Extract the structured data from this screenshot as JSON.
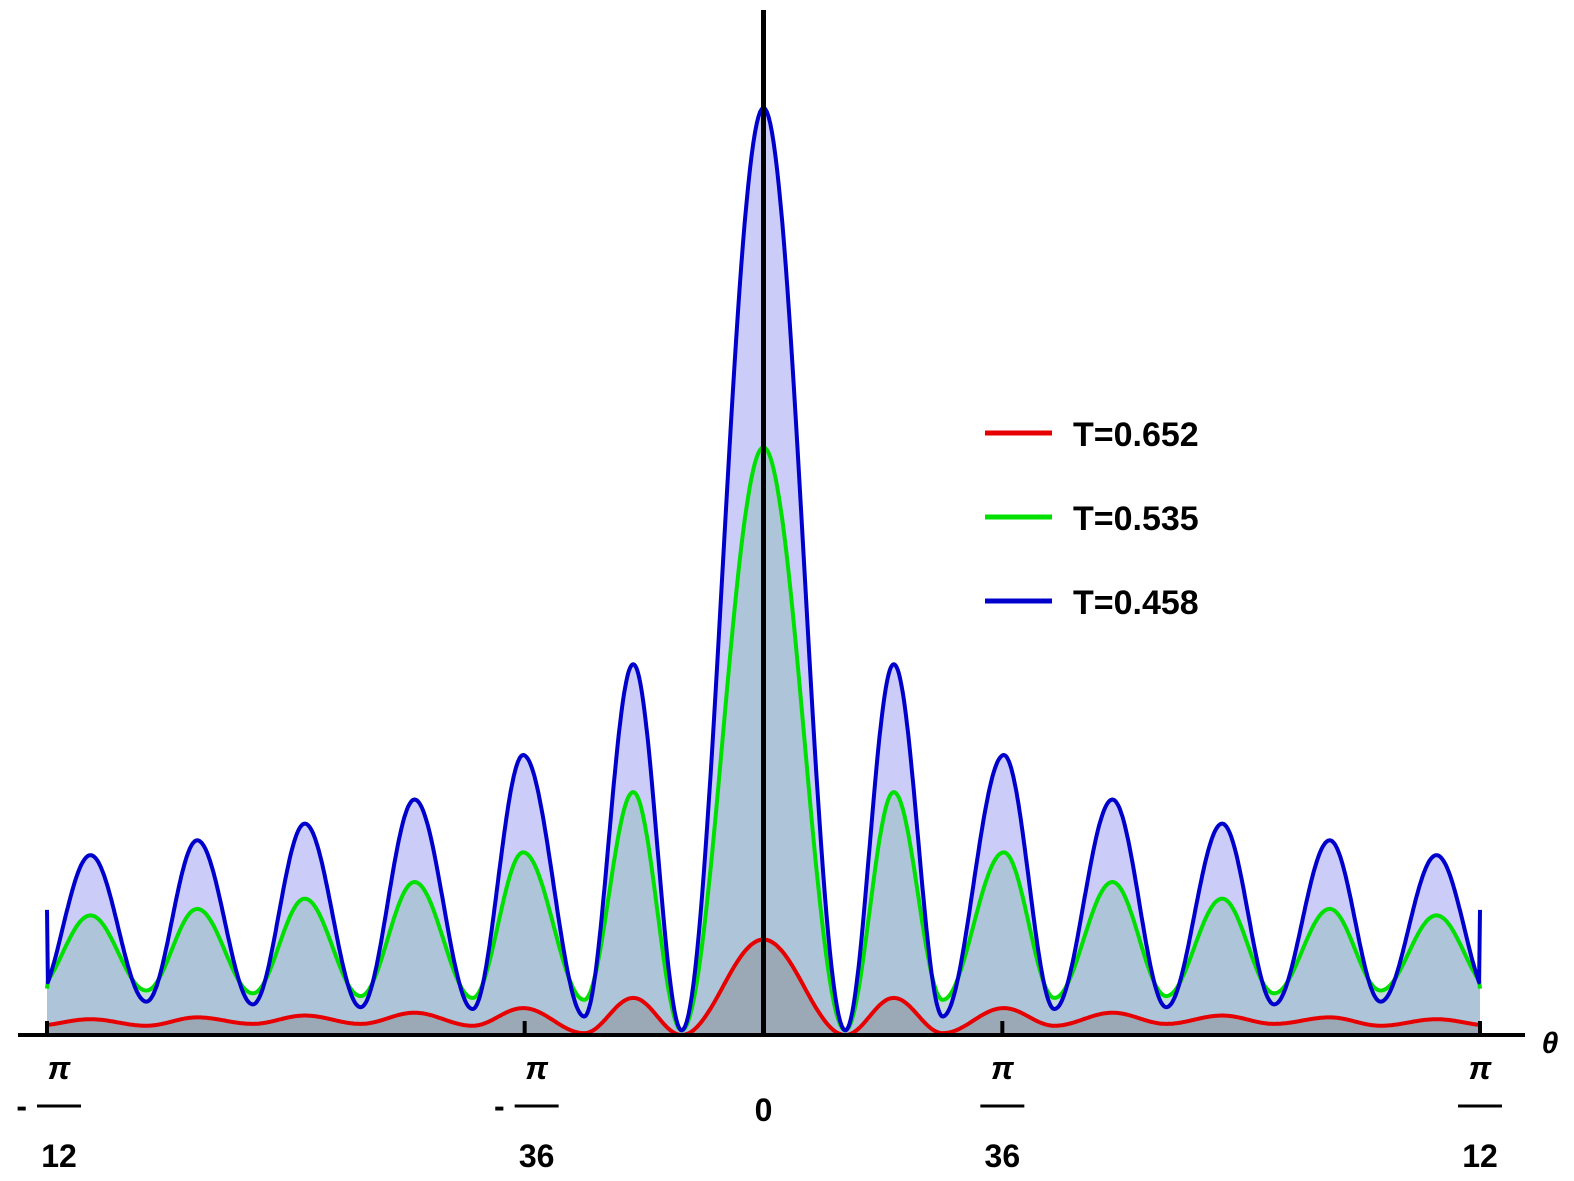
{
  "chart_data": {
    "type": "area",
    "title": "",
    "xlabel": "θ",
    "ylabel": "",
    "xlim": [
      -0.2618,
      0.2618
    ],
    "ylim": [
      0,
      1.0
    ],
    "x_ticks": [
      {
        "value": -0.2618,
        "sign": "-",
        "numerator": "π",
        "denominator": "12"
      },
      {
        "value": -0.08727,
        "sign": "-",
        "numerator": "π",
        "denominator": "36"
      },
      {
        "value": 0,
        "label": "0"
      },
      {
        "value": 0.08727,
        "sign": "",
        "numerator": "π",
        "denominator": "36"
      },
      {
        "value": 0.2618,
        "sign": "",
        "numerator": "π",
        "denominator": "12"
      }
    ],
    "legend_position": "right",
    "series": [
      {
        "name": "T=0.652",
        "color": "#e60000",
        "fill": "rgba(120,120,120,0.35)",
        "peak": 0.103,
        "floor": 0.0,
        "x": [
          0,
          0.0299,
          0.0476,
          0.0655,
          0.0878,
          0.1063,
          0.1275,
          0.1472,
          0.1676,
          0.1866,
          0.2069,
          0.2255,
          0.2459,
          0.2618
        ],
        "y": [
          0.103,
          0.0,
          0.04,
          0.002,
          0.029,
          0.01,
          0.024,
          0.012,
          0.021,
          0.012,
          0.019,
          0.01,
          0.017,
          0.01
        ]
      },
      {
        "name": "T=0.535",
        "color": "#00e000",
        "fill": "rgba(150,190,190,0.55)",
        "peak": 0.634,
        "floor": 0.005,
        "x": [
          0,
          0.0299,
          0.0476,
          0.0655,
          0.0878,
          0.1063,
          0.1275,
          0.1472,
          0.1676,
          0.1866,
          0.2069,
          0.2255,
          0.2459,
          0.2618
        ],
        "y": [
          0.634,
          0.005,
          0.262,
          0.038,
          0.197,
          0.04,
          0.165,
          0.042,
          0.147,
          0.045,
          0.136,
          0.048,
          0.129,
          0.05
        ]
      },
      {
        "name": "T=0.458",
        "color": "#0000cc",
        "fill": "rgba(170,170,245,0.6)",
        "peak": 1.0,
        "floor": 0.005,
        "x": [
          0,
          0.0299,
          0.0476,
          0.0655,
          0.0878,
          0.1063,
          0.1275,
          0.1472,
          0.1676,
          0.1866,
          0.2069,
          0.2255,
          0.2459,
          0.2618
        ],
        "y": [
          1.0,
          0.005,
          0.4,
          0.02,
          0.302,
          0.028,
          0.254,
          0.03,
          0.228,
          0.033,
          0.21,
          0.036,
          0.194,
          0.135
        ]
      }
    ]
  }
}
